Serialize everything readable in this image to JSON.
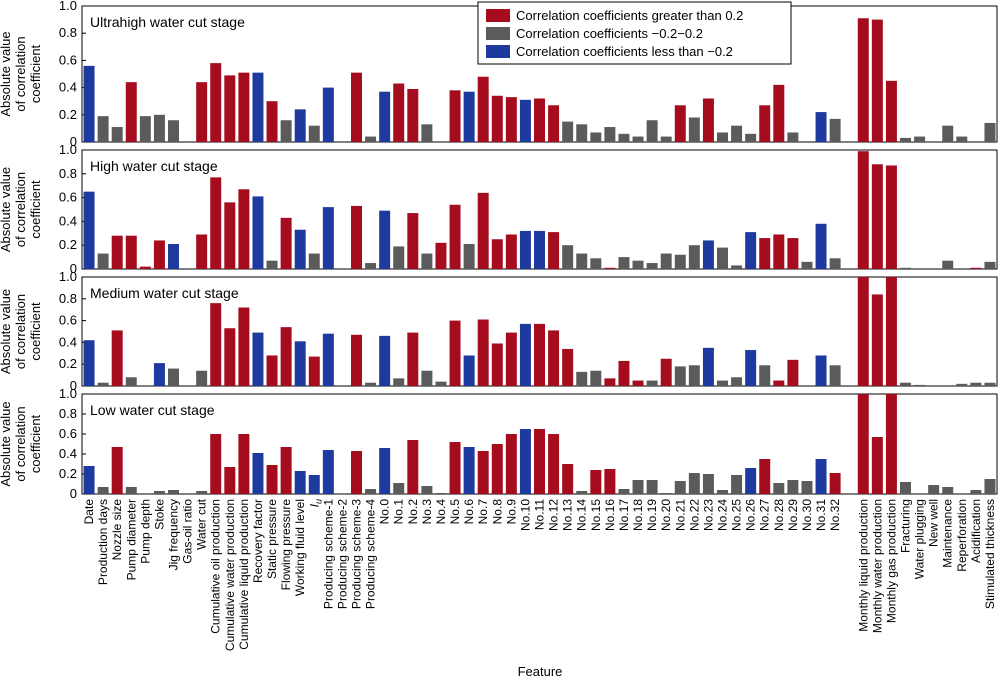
{
  "colors": {
    "pos": "#a50d1e",
    "mid": "#5b5b5b",
    "neg": "#1f3a9e"
  },
  "chart_data": {
    "type": "bar",
    "xlabel": "Feature",
    "ylabel_lines": [
      "Absolute value",
      "of correlation",
      "coefficient"
    ],
    "ylim": [
      0,
      1.0
    ],
    "yticks": [
      "0",
      "0.2",
      "0.4",
      "0.6",
      "0.8",
      "1.0"
    ],
    "legend": [
      {
        "key": "pos",
        "label": "Correlation coefficients greater than 0.2"
      },
      {
        "key": "mid",
        "label": "Correlation coefficients −0.2−0.2"
      },
      {
        "key": "neg",
        "label": "Correlation coefficients less than −0.2"
      }
    ],
    "categories": [
      "Date",
      "Production days",
      "Nozzle size",
      "Pump diameter",
      "Pump depth",
      "Stoke",
      "Jig frequency",
      "Gas-oil ratio",
      "Water cut",
      "Cumulative oil production",
      "Cumulative water production",
      "Cumulative liquid production",
      "Recovery factor",
      "Static pressure",
      "Flowing pressure",
      "Working fluid level",
      "Iu",
      "Producing scheme-1",
      "Producing scheme-2",
      "Producing scheme-3",
      "Producing scheme-4",
      "No.0",
      "No.1",
      "No.2",
      "No.3",
      "No.4",
      "No.5",
      "No.6",
      "No.7",
      "No.8",
      "No.9",
      "No.10",
      "No.11",
      "No.12",
      "No.13",
      "No.14",
      "No.15",
      "No.16",
      "No.17",
      "No.18",
      "No.19",
      "No.20",
      "No.21",
      "No.22",
      "No.23",
      "No.24",
      "No.25",
      "No.26",
      "No.27",
      "No.28",
      "No.29",
      "No.30",
      "No.31",
      "No.32",
      "",
      "Monthly liquid production",
      "Monthly water production",
      "Monthly gas production",
      "Fracturing",
      "Water plugging",
      "New well",
      "Maintenance",
      "Reperforation",
      "Acidification",
      "Stimulated thickness"
    ],
    "panels": [
      {
        "title": "Ultrahigh water cut stage",
        "values": [
          0.56,
          0.19,
          0.11,
          0.44,
          0.19,
          0.2,
          0.16,
          0,
          0.44,
          0.58,
          0.49,
          0.51,
          0.51,
          0.3,
          0.16,
          0.24,
          0.12,
          0.4,
          0,
          0.51,
          0.04,
          0.37,
          0.43,
          0.39,
          0.13,
          0,
          0.38,
          0.37,
          0.48,
          0.34,
          0.33,
          0.31,
          0.32,
          0.27,
          0.15,
          0.13,
          0.07,
          0.11,
          0.06,
          0.04,
          0.16,
          0.04,
          0.27,
          0.18,
          0.32,
          0.07,
          0.12,
          0.06,
          0.27,
          0.42,
          0.07,
          0,
          0.22,
          0.17,
          0,
          0.91,
          0.9,
          0.45,
          0.03,
          0.04,
          0,
          0.12,
          0.04,
          0,
          0.14
        ],
        "signs": [
          "neg",
          "mid",
          "mid",
          "pos",
          "mid",
          "mid",
          "mid",
          "mid",
          "pos",
          "pos",
          "pos",
          "pos",
          "neg",
          "pos",
          "mid",
          "neg",
          "mid",
          "neg",
          "mid",
          "pos",
          "mid",
          "neg",
          "pos",
          "pos",
          "mid",
          "mid",
          "pos",
          "neg",
          "pos",
          "pos",
          "pos",
          "neg",
          "pos",
          "pos",
          "mid",
          "mid",
          "mid",
          "mid",
          "mid",
          "mid",
          "mid",
          "mid",
          "pos",
          "mid",
          "pos",
          "mid",
          "mid",
          "mid",
          "pos",
          "pos",
          "mid",
          "mid",
          "neg",
          "mid",
          "mid",
          "pos",
          "pos",
          "pos",
          "mid",
          "mid",
          "mid",
          "mid",
          "mid",
          "mid",
          "mid"
        ]
      },
      {
        "title": "High water cut stage",
        "values": [
          0.65,
          0.13,
          0.28,
          0.28,
          0.02,
          0.24,
          0.21,
          0,
          0.29,
          0.77,
          0.56,
          0.67,
          0.61,
          0.07,
          0.43,
          0.33,
          0.13,
          0.52,
          0,
          0.53,
          0.05,
          0.49,
          0.19,
          0.47,
          0.13,
          0.22,
          0.54,
          0.21,
          0.64,
          0.25,
          0.29,
          0.32,
          0.32,
          0.31,
          0.2,
          0.13,
          0.09,
          0.01,
          0.1,
          0.07,
          0.05,
          0.13,
          0.12,
          0.2,
          0.24,
          0.18,
          0.03,
          0.31,
          0.26,
          0.29,
          0.26,
          0.06,
          0.38,
          0.09,
          0,
          0.99,
          0.88,
          0.87,
          0.01,
          0,
          0,
          0.07,
          0,
          0.01,
          0.06
        ],
        "signs": [
          "neg",
          "mid",
          "pos",
          "pos",
          "pos",
          "pos",
          "neg",
          "mid",
          "pos",
          "pos",
          "pos",
          "pos",
          "neg",
          "mid",
          "pos",
          "neg",
          "mid",
          "neg",
          "mid",
          "pos",
          "mid",
          "neg",
          "mid",
          "pos",
          "mid",
          "pos",
          "pos",
          "mid",
          "pos",
          "pos",
          "pos",
          "neg",
          "neg",
          "pos",
          "mid",
          "mid",
          "mid",
          "pos",
          "mid",
          "mid",
          "mid",
          "mid",
          "mid",
          "mid",
          "neg",
          "mid",
          "mid",
          "neg",
          "pos",
          "pos",
          "pos",
          "mid",
          "neg",
          "mid",
          "mid",
          "pos",
          "pos",
          "pos",
          "mid",
          "mid",
          "mid",
          "mid",
          "mid",
          "pos",
          "mid"
        ]
      },
      {
        "title": "Medium water cut stage",
        "values": [
          0.42,
          0.03,
          0.51,
          0.08,
          0,
          0.21,
          0.16,
          0,
          0.14,
          0.76,
          0.53,
          0.72,
          0.49,
          0.28,
          0.54,
          0.41,
          0.27,
          0.48,
          0,
          0.47,
          0.03,
          0.46,
          0.07,
          0.49,
          0.14,
          0.04,
          0.6,
          0.28,
          0.61,
          0.39,
          0.49,
          0.57,
          0.57,
          0.51,
          0.34,
          0.13,
          0.14,
          0.07,
          0.23,
          0.05,
          0.05,
          0.25,
          0.18,
          0.19,
          0.35,
          0.05,
          0.08,
          0.33,
          0.19,
          0.05,
          0.24,
          0,
          0.28,
          0.19,
          0,
          1.0,
          0.84,
          1.0,
          0.03,
          0.01,
          0,
          0,
          0.02,
          0.03,
          0.03
        ],
        "signs": [
          "neg",
          "mid",
          "pos",
          "mid",
          "mid",
          "neg",
          "mid",
          "mid",
          "mid",
          "pos",
          "pos",
          "pos",
          "neg",
          "pos",
          "pos",
          "neg",
          "pos",
          "neg",
          "mid",
          "pos",
          "mid",
          "neg",
          "mid",
          "pos",
          "mid",
          "mid",
          "pos",
          "neg",
          "pos",
          "pos",
          "pos",
          "neg",
          "pos",
          "pos",
          "pos",
          "mid",
          "mid",
          "pos",
          "pos",
          "pos",
          "mid",
          "pos",
          "mid",
          "mid",
          "neg",
          "mid",
          "mid",
          "neg",
          "mid",
          "pos",
          "pos",
          "mid",
          "neg",
          "mid",
          "mid",
          "pos",
          "pos",
          "pos",
          "mid",
          "mid",
          "mid",
          "mid",
          "mid",
          "mid",
          "mid"
        ]
      },
      {
        "title": "Low water cut stage",
        "values": [
          0.28,
          0.07,
          0.47,
          0.07,
          0,
          0.03,
          0.04,
          0,
          0.03,
          0.6,
          0.27,
          0.6,
          0.41,
          0.29,
          0.47,
          0.23,
          0.19,
          0.44,
          0,
          0.43,
          0.05,
          0.46,
          0.11,
          0.54,
          0.08,
          0.01,
          0.52,
          0.47,
          0.43,
          0.5,
          0.6,
          0.65,
          0.65,
          0.6,
          0.3,
          0.03,
          0.24,
          0.25,
          0.05,
          0.14,
          0.14,
          0.01,
          0.13,
          0.21,
          0.2,
          0.04,
          0.19,
          0.26,
          0.35,
          0.11,
          0.14,
          0.13,
          0.35,
          0.21,
          0,
          1.0,
          0.57,
          1.0,
          0.12,
          0,
          0.09,
          0.07,
          0,
          0.04,
          0.15
        ],
        "signs": [
          "neg",
          "mid",
          "pos",
          "mid",
          "mid",
          "mid",
          "mid",
          "mid",
          "mid",
          "pos",
          "pos",
          "pos",
          "neg",
          "pos",
          "pos",
          "neg",
          "neg",
          "neg",
          "mid",
          "pos",
          "mid",
          "neg",
          "mid",
          "pos",
          "mid",
          "mid",
          "pos",
          "neg",
          "pos",
          "pos",
          "pos",
          "neg",
          "pos",
          "pos",
          "pos",
          "mid",
          "pos",
          "pos",
          "mid",
          "mid",
          "mid",
          "mid",
          "mid",
          "mid",
          "mid",
          "mid",
          "mid",
          "neg",
          "pos",
          "mid",
          "mid",
          "mid",
          "neg",
          "pos",
          "mid",
          "pos",
          "pos",
          "pos",
          "mid",
          "mid",
          "mid",
          "mid",
          "mid",
          "mid",
          "mid"
        ]
      }
    ]
  }
}
